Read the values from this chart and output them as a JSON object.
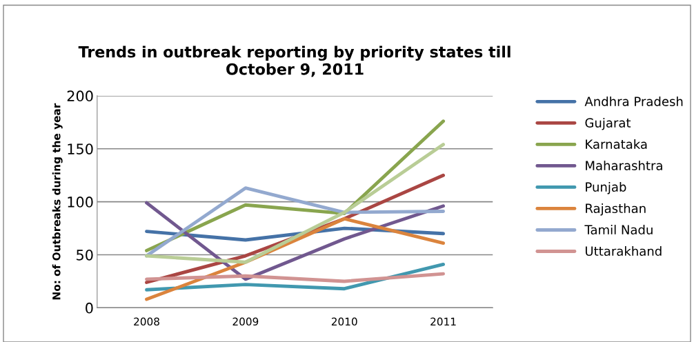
{
  "chart_data": {
    "type": "line",
    "title": "Trends in outbreak reporting by priority states till\nOctober 9, 2011",
    "ylabel": "No: of Outbreaks during the year",
    "categories": [
      "2008",
      "2009",
      "2010",
      "2011"
    ],
    "series": [
      {
        "name": "Andhra Pradesh",
        "color": "#4572a7",
        "values": [
          72,
          64,
          75,
          70
        ]
      },
      {
        "name": "Gujarat",
        "color": "#aa4643",
        "values": [
          24,
          49,
          84,
          125
        ]
      },
      {
        "name": "Karnataka",
        "color": "#89a54e",
        "values": [
          54,
          97,
          89,
          176
        ]
      },
      {
        "name": "Maharashtra",
        "color": "#71588f",
        "values": [
          99,
          27,
          65,
          96
        ]
      },
      {
        "name": "Punjab",
        "color": "#4198af",
        "values": [
          17,
          22,
          18,
          41
        ]
      },
      {
        "name": "Rajasthan",
        "color": "#db843d",
        "values": [
          8,
          43,
          84,
          61
        ]
      },
      {
        "name": "Tamil Nadu",
        "color": "#93a9cf",
        "values": [
          49,
          113,
          90,
          91
        ]
      },
      {
        "name": "Uttarakhand",
        "color": "#d19392",
        "values": [
          27,
          30,
          25,
          32
        ]
      },
      {
        "color": "#b9cd96",
        "values": [
          49,
          43,
          90,
          154
        ]
      }
    ],
    "ylim": [
      0,
      200
    ],
    "yticks": [
      0,
      50,
      100,
      150,
      200
    ],
    "grid": "y",
    "legend": "right",
    "marker": "none",
    "line_style": "solid"
  }
}
